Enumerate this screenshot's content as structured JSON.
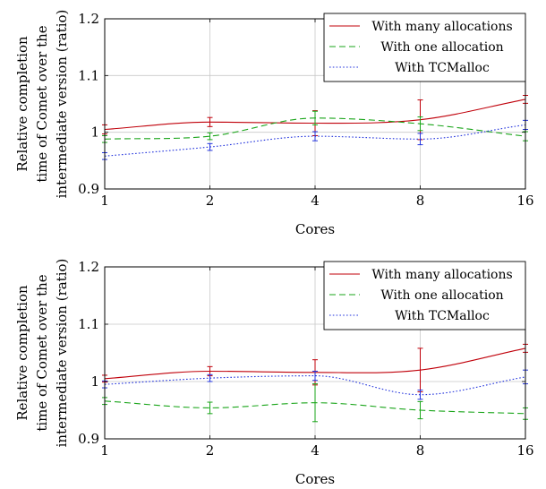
{
  "chart_data": [
    {
      "type": "line",
      "title": "",
      "xlabel": "Cores",
      "ylabel_lines": [
        "Relative completion",
        "time of Comet over the",
        "intermediate version (ratio)"
      ],
      "x_scale": "log2",
      "x": [
        1,
        2,
        4,
        8,
        16
      ],
      "x_tick_labels": [
        "1",
        "2",
        "4",
        "8",
        "16"
      ],
      "ylim": [
        0.9,
        1.2
      ],
      "y_ticks": [
        0.9,
        1,
        1.1,
        1.2
      ],
      "y_tick_labels": [
        "0.9",
        "1",
        "1.1",
        "1.2"
      ],
      "grid": true,
      "legend_position": "top-right",
      "series": [
        {
          "name": "With many allocations",
          "color": "#c0000a",
          "dash": "solid",
          "values": [
            1.005,
            1.018,
            1.016,
            1.022,
            1.058
          ],
          "err": [
            0.008,
            0.008,
            0.022,
            0.035,
            0.007
          ]
        },
        {
          "name": "With one allocation",
          "color": "#1aa51a",
          "dash": "dashed",
          "values": [
            0.988,
            0.993,
            1.025,
            1.015,
            0.993
          ],
          "err": [
            0.006,
            0.006,
            0.012,
            0.012,
            0.008
          ]
        },
        {
          "name": "With TCMalloc",
          "color": "#2233dd",
          "dash": "dotted",
          "values": [
            0.958,
            0.974,
            0.993,
            0.988,
            1.013
          ],
          "err": [
            0.006,
            0.006,
            0.008,
            0.01,
            0.008
          ]
        }
      ]
    },
    {
      "type": "line",
      "title": "",
      "xlabel": "Cores",
      "ylabel_lines": [
        "Relative completion",
        "time of Comet over the",
        "intermediate version (ratio)"
      ],
      "x_scale": "log2",
      "x": [
        1,
        2,
        4,
        8,
        16
      ],
      "x_tick_labels": [
        "1",
        "2",
        "4",
        "8",
        "16"
      ],
      "ylim": [
        0.9,
        1.2
      ],
      "y_ticks": [
        0.9,
        1,
        1.1,
        1.2
      ],
      "y_tick_labels": [
        "0.9",
        "1",
        "1.1",
        "1.2"
      ],
      "grid": true,
      "legend_position": "top-right",
      "series": [
        {
          "name": "With many allocations",
          "color": "#c0000a",
          "dash": "solid",
          "values": [
            1.005,
            1.018,
            1.016,
            1.02,
            1.058
          ],
          "err": [
            0.006,
            0.008,
            0.022,
            0.038,
            0.007
          ]
        },
        {
          "name": "With one allocation",
          "color": "#1aa51a",
          "dash": "dashed",
          "values": [
            0.966,
            0.954,
            0.963,
            0.95,
            0.944
          ],
          "err": [
            0.006,
            0.01,
            0.033,
            0.015,
            0.01
          ]
        },
        {
          "name": "With TCMalloc",
          "color": "#2233dd",
          "dash": "dotted",
          "values": [
            0.995,
            1.006,
            1.01,
            0.977,
            1.008
          ],
          "err": [
            0.006,
            0.006,
            0.008,
            0.008,
            0.012
          ]
        }
      ]
    }
  ]
}
